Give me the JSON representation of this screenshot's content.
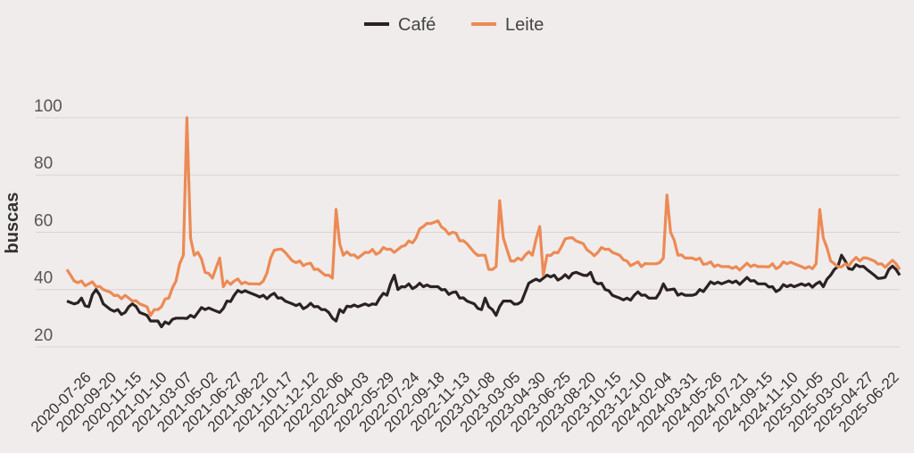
{
  "chart_data": {
    "type": "line",
    "title": "",
    "xlabel": "",
    "ylabel": "buscas",
    "ylim": [
      15,
      100
    ],
    "yticks": [
      20,
      40,
      60,
      80,
      100
    ],
    "grid": true,
    "legend_position": "top-center",
    "x_tick_labels": [
      "2020-07-26",
      "2020-09-20",
      "2020-11-15",
      "2021-01-10",
      "2021-03-07",
      "2021-05-02",
      "2021-06-27",
      "2021-08-22",
      "2021-10-17",
      "2021-12-12",
      "2022-02-06",
      "2022-04-03",
      "2022-05-29",
      "2022-07-24",
      "2022-09-18",
      "2022-11-13",
      "2023-01-08",
      "2023-03-05",
      "2023-04-30",
      "2023-06-25",
      "2023-08-20",
      "2023-10-15",
      "2023-12-10",
      "2024-02-04",
      "2024-03-31",
      "2024-05-26",
      "2024-07-21",
      "2024-09-15",
      "2024-11-10",
      "2025-01-05",
      "2025-03-02",
      "2025-04-27",
      "2025-06-22"
    ],
    "series": [
      {
        "name": "Café",
        "color": "#2b2222",
        "points": [
          [
            0,
            36
          ],
          [
            2,
            35
          ],
          [
            4,
            37
          ],
          [
            6,
            34
          ],
          [
            8,
            40
          ],
          [
            10,
            35
          ],
          [
            12,
            33
          ],
          [
            14,
            33
          ],
          [
            16,
            32
          ],
          [
            17,
            34
          ],
          [
            18,
            35
          ],
          [
            20,
            32
          ],
          [
            22,
            31
          ],
          [
            23,
            29
          ],
          [
            24,
            29
          ],
          [
            25,
            29
          ],
          [
            26,
            27
          ],
          [
            28,
            28
          ],
          [
            30,
            30
          ],
          [
            32,
            30
          ],
          [
            34,
            31
          ],
          [
            36,
            32
          ],
          [
            38,
            33
          ],
          [
            40,
            33
          ],
          [
            42,
            32
          ],
          [
            44,
            36
          ],
          [
            46,
            38
          ],
          [
            48,
            39
          ],
          [
            50,
            39
          ],
          [
            52,
            38
          ],
          [
            54,
            38
          ],
          [
            56,
            38
          ],
          [
            58,
            37
          ],
          [
            60,
            36
          ],
          [
            62,
            35
          ],
          [
            64,
            35
          ],
          [
            66,
            34
          ],
          [
            68,
            34
          ],
          [
            70,
            33
          ],
          [
            71,
            33
          ],
          [
            72,
            32
          ],
          [
            73,
            30
          ],
          [
            74,
            29
          ],
          [
            75,
            33
          ],
          [
            76,
            32
          ],
          [
            78,
            34
          ],
          [
            80,
            34
          ],
          [
            82,
            35
          ],
          [
            84,
            35
          ],
          [
            86,
            37
          ],
          [
            88,
            38
          ],
          [
            90,
            45
          ],
          [
            91,
            40
          ],
          [
            92,
            41
          ],
          [
            94,
            42
          ],
          [
            96,
            41
          ],
          [
            98,
            41
          ],
          [
            100,
            41
          ],
          [
            102,
            41
          ],
          [
            104,
            40
          ],
          [
            106,
            39
          ],
          [
            108,
            37
          ],
          [
            110,
            36
          ],
          [
            112,
            35
          ],
          [
            114,
            33
          ],
          [
            115,
            37
          ],
          [
            116,
            34
          ],
          [
            117,
            33
          ],
          [
            118,
            31
          ],
          [
            120,
            36
          ],
          [
            122,
            36
          ],
          [
            124,
            35
          ],
          [
            126,
            39
          ],
          [
            128,
            43
          ],
          [
            130,
            43
          ],
          [
            132,
            45
          ],
          [
            134,
            45
          ],
          [
            136,
            44
          ],
          [
            138,
            44
          ],
          [
            140,
            46
          ],
          [
            142,
            45
          ],
          [
            144,
            46
          ],
          [
            146,
            42
          ],
          [
            148,
            40
          ],
          [
            150,
            38
          ],
          [
            152,
            37
          ],
          [
            154,
            37
          ],
          [
            156,
            38
          ],
          [
            158,
            38
          ],
          [
            160,
            37
          ],
          [
            162,
            37
          ],
          [
            164,
            42
          ],
          [
            166,
            40
          ],
          [
            168,
            38
          ],
          [
            170,
            38
          ],
          [
            172,
            38
          ],
          [
            174,
            40
          ],
          [
            176,
            41
          ],
          [
            178,
            42
          ],
          [
            180,
            42
          ],
          [
            182,
            43
          ],
          [
            184,
            43
          ],
          [
            186,
            43
          ],
          [
            188,
            43
          ],
          [
            190,
            42
          ],
          [
            192,
            42
          ],
          [
            194,
            41
          ],
          [
            196,
            40
          ],
          [
            198,
            41
          ],
          [
            200,
            41
          ],
          [
            202,
            42
          ],
          [
            204,
            42
          ],
          [
            206,
            42
          ],
          [
            208,
            41
          ],
          [
            210,
            45
          ],
          [
            211,
            47
          ],
          [
            212,
            48
          ],
          [
            213,
            52
          ],
          [
            214,
            50
          ],
          [
            216,
            47
          ],
          [
            218,
            48
          ],
          [
            220,
            47
          ],
          [
            222,
            45
          ],
          [
            224,
            44
          ],
          [
            226,
            47
          ],
          [
            228,
            47
          ],
          [
            229,
            45
          ]
        ]
      },
      {
        "name": "Leite",
        "color": "#ec8a55",
        "points": [
          [
            0,
            47
          ],
          [
            2,
            43
          ],
          [
            4,
            43
          ],
          [
            6,
            42
          ],
          [
            8,
            41
          ],
          [
            10,
            40
          ],
          [
            12,
            39
          ],
          [
            14,
            38
          ],
          [
            16,
            38
          ],
          [
            17,
            37
          ],
          [
            18,
            36
          ],
          [
            20,
            35
          ],
          [
            22,
            34
          ],
          [
            23,
            31
          ],
          [
            24,
            33
          ],
          [
            25,
            33
          ],
          [
            26,
            34
          ],
          [
            28,
            37
          ],
          [
            30,
            43
          ],
          [
            31,
            49
          ],
          [
            32,
            52
          ],
          [
            33,
            100
          ],
          [
            34,
            58
          ],
          [
            35,
            52
          ],
          [
            36,
            53
          ],
          [
            38,
            46
          ],
          [
            40,
            44
          ],
          [
            42,
            51
          ],
          [
            43,
            41
          ],
          [
            44,
            43
          ],
          [
            46,
            43
          ],
          [
            48,
            42
          ],
          [
            50,
            42
          ],
          [
            52,
            42
          ],
          [
            54,
            43
          ],
          [
            56,
            51
          ],
          [
            58,
            54
          ],
          [
            60,
            53
          ],
          [
            62,
            50
          ],
          [
            64,
            50
          ],
          [
            66,
            49
          ],
          [
            68,
            47
          ],
          [
            70,
            46
          ],
          [
            71,
            45
          ],
          [
            72,
            45
          ],
          [
            73,
            44
          ],
          [
            74,
            68
          ],
          [
            75,
            56
          ],
          [
            76,
            52
          ],
          [
            78,
            52
          ],
          [
            80,
            51
          ],
          [
            82,
            53
          ],
          [
            84,
            54
          ],
          [
            86,
            53
          ],
          [
            88,
            54
          ],
          [
            90,
            53
          ],
          [
            92,
            55
          ],
          [
            94,
            57
          ],
          [
            96,
            58
          ],
          [
            98,
            62
          ],
          [
            100,
            63
          ],
          [
            102,
            64
          ],
          [
            104,
            61
          ],
          [
            106,
            60
          ],
          [
            108,
            57
          ],
          [
            110,
            56
          ],
          [
            112,
            53
          ],
          [
            114,
            52
          ],
          [
            115,
            52
          ],
          [
            116,
            47
          ],
          [
            117,
            47
          ],
          [
            118,
            48
          ],
          [
            119,
            71
          ],
          [
            120,
            58
          ],
          [
            122,
            50
          ],
          [
            124,
            51
          ],
          [
            126,
            52
          ],
          [
            128,
            52
          ],
          [
            130,
            62
          ],
          [
            131,
            45
          ],
          [
            132,
            52
          ],
          [
            134,
            53
          ],
          [
            136,
            55
          ],
          [
            138,
            58
          ],
          [
            140,
            57
          ],
          [
            142,
            56
          ],
          [
            144,
            53
          ],
          [
            146,
            53
          ],
          [
            148,
            54
          ],
          [
            150,
            53
          ],
          [
            152,
            52
          ],
          [
            154,
            50
          ],
          [
            156,
            49
          ],
          [
            158,
            48
          ],
          [
            160,
            49
          ],
          [
            162,
            49
          ],
          [
            164,
            51
          ],
          [
            165,
            73
          ],
          [
            166,
            60
          ],
          [
            168,
            52
          ],
          [
            170,
            51
          ],
          [
            172,
            51
          ],
          [
            174,
            51
          ],
          [
            176,
            49
          ],
          [
            178,
            48
          ],
          [
            180,
            48
          ],
          [
            182,
            48
          ],
          [
            184,
            48
          ],
          [
            186,
            48
          ],
          [
            188,
            48
          ],
          [
            190,
            48
          ],
          [
            192,
            48
          ],
          [
            194,
            49
          ],
          [
            196,
            48
          ],
          [
            198,
            49
          ],
          [
            200,
            49
          ],
          [
            202,
            48
          ],
          [
            204,
            48
          ],
          [
            206,
            49
          ],
          [
            207,
            68
          ],
          [
            208,
            58
          ],
          [
            210,
            50
          ],
          [
            212,
            48
          ],
          [
            214,
            49
          ],
          [
            216,
            50
          ],
          [
            218,
            50
          ],
          [
            220,
            51
          ],
          [
            222,
            50
          ],
          [
            224,
            49
          ],
          [
            226,
            49
          ],
          [
            228,
            49
          ],
          [
            229,
            47
          ]
        ]
      }
    ],
    "x_count": 230
  }
}
